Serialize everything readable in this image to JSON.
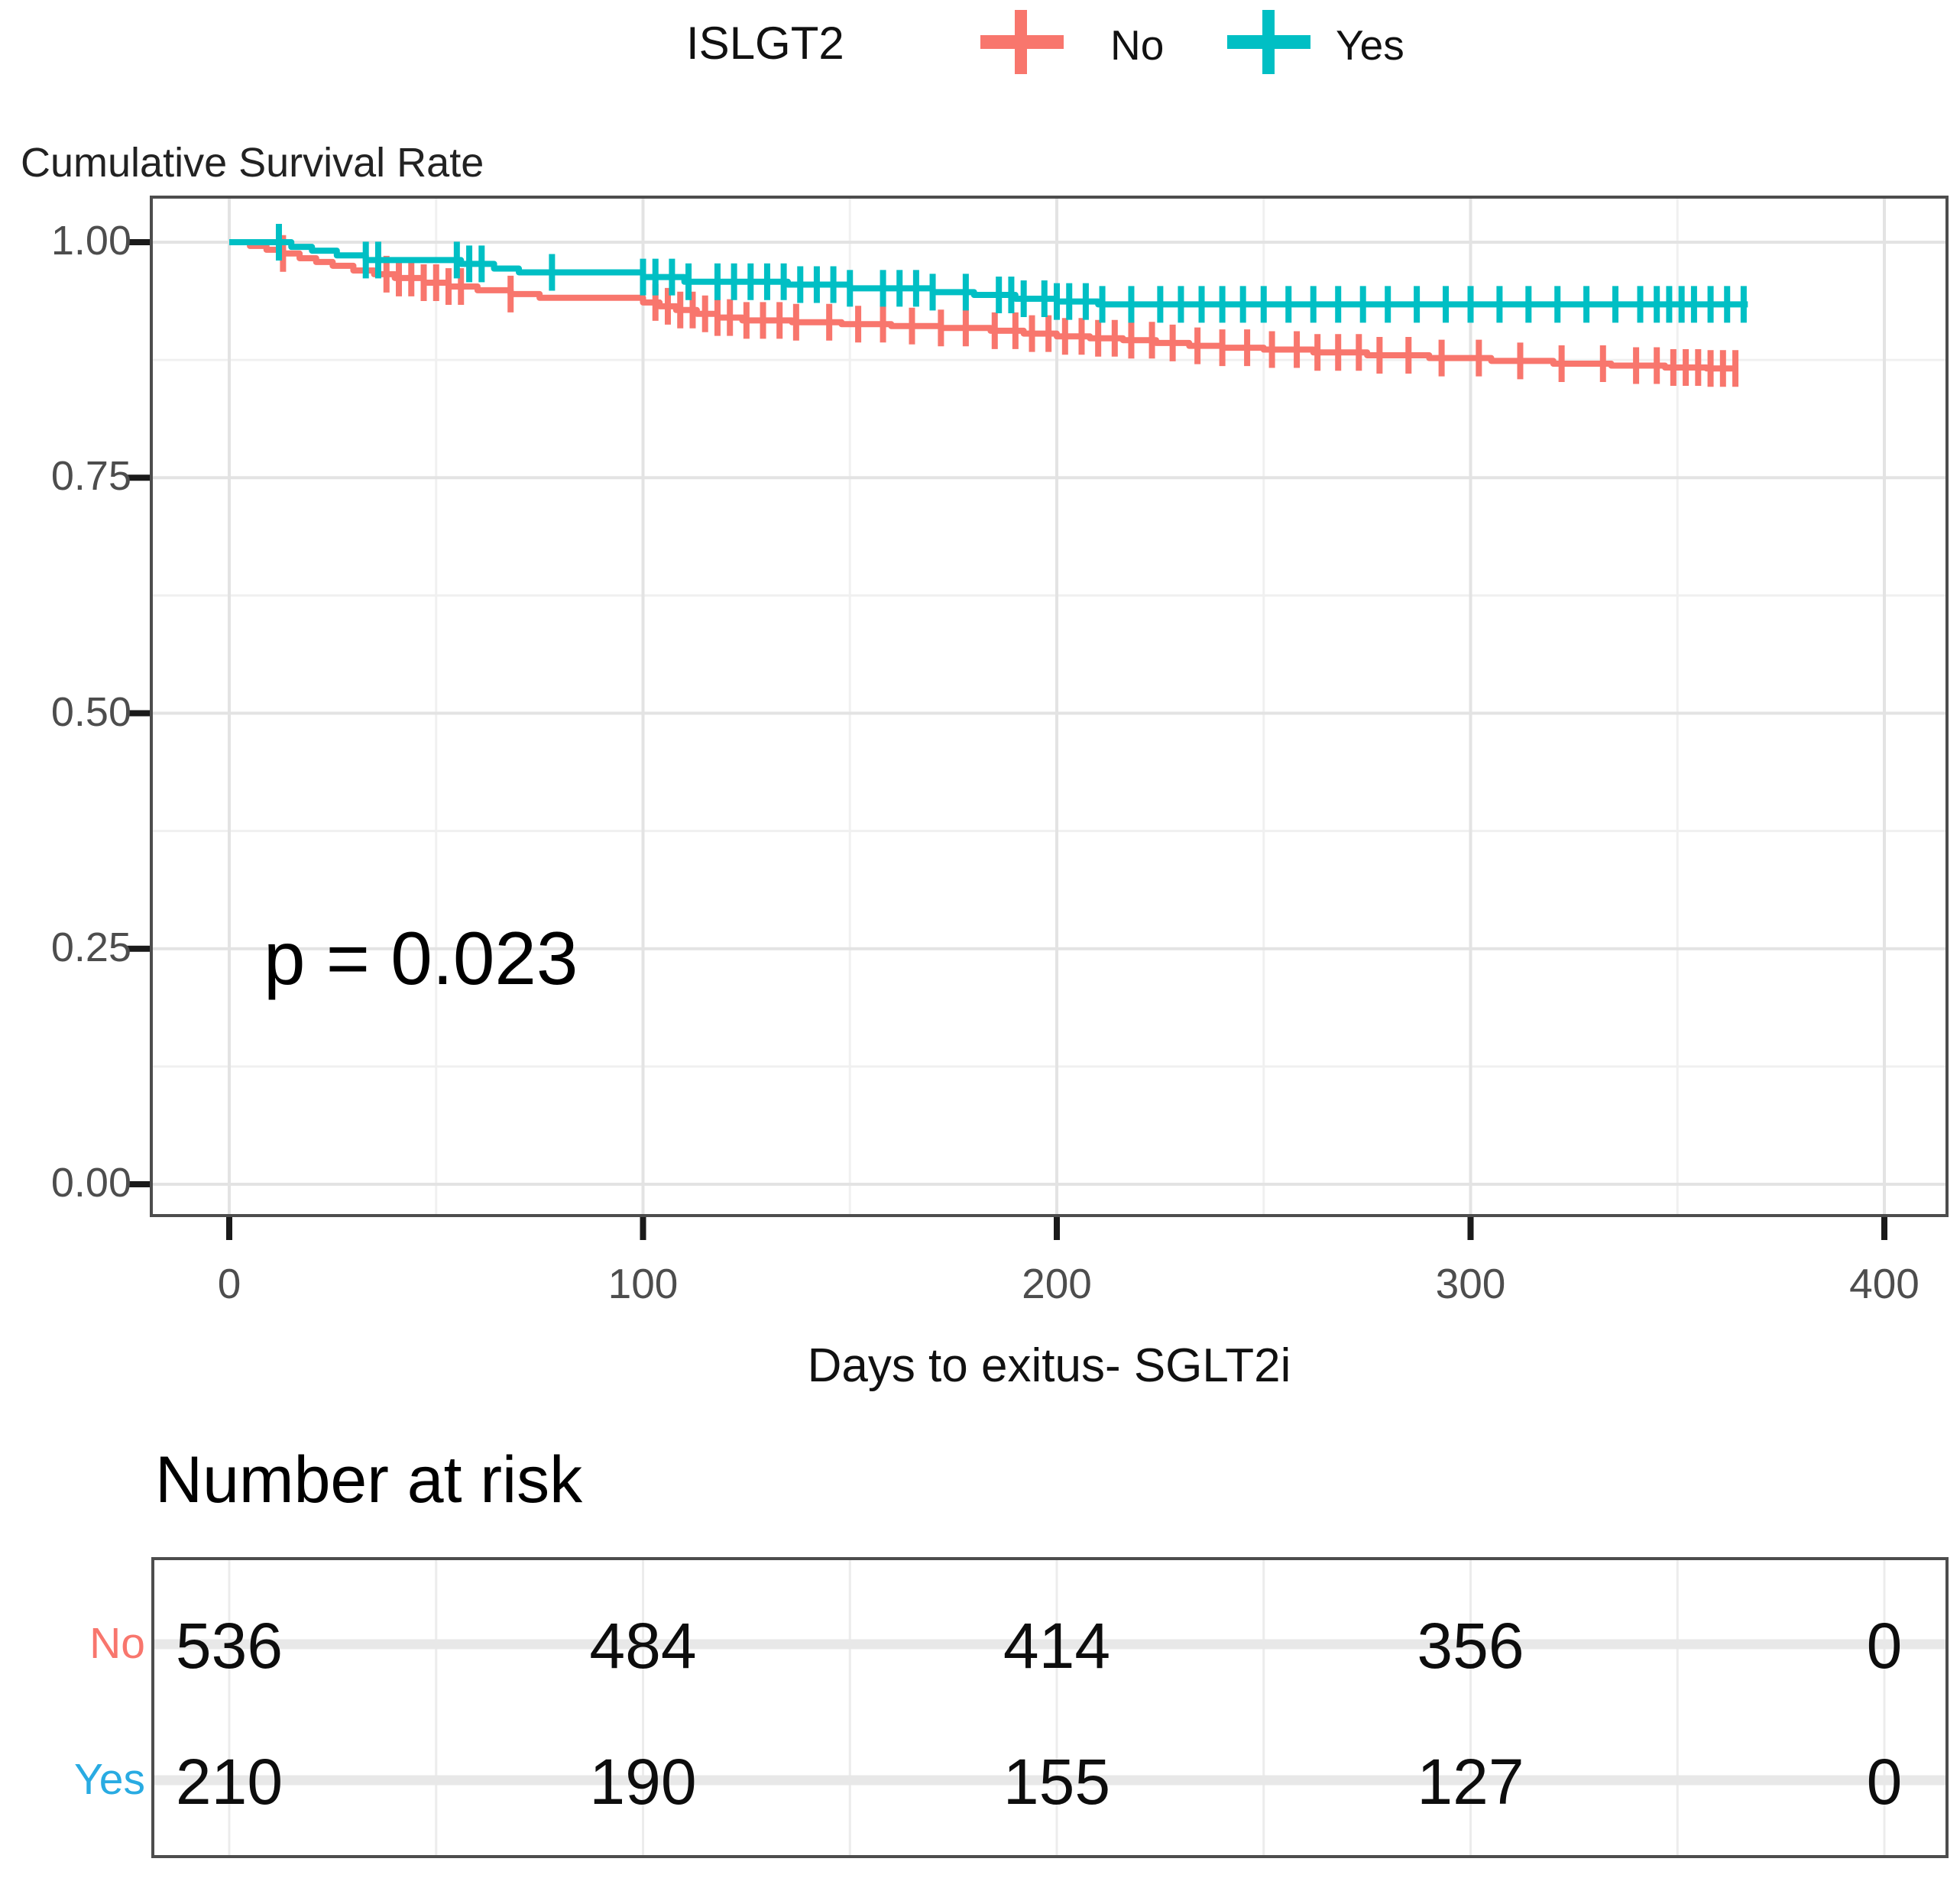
{
  "legend": {
    "title": "ISLGT2",
    "items": [
      {
        "label": "No",
        "color": "#F8766D"
      },
      {
        "label": "Yes",
        "color": "#00BFC4"
      }
    ]
  },
  "chart_data": {
    "type": "line",
    "variant": "kaplan-meier-step",
    "title": "Cumulative Survival Rate",
    "xlabel": "Days to exitus- SGLT2i",
    "ylabel": "Cumulative Survival Rate",
    "annotation": "p = 0.023",
    "x_ticks": [
      "0",
      "100",
      "200",
      "300",
      "400"
    ],
    "x_tick_values": [
      0,
      100,
      200,
      300,
      400
    ],
    "y_ticks": [
      "1.00",
      "0.75",
      "0.50",
      "0.25",
      "0.00"
    ],
    "y_tick_values": [
      1.0,
      0.75,
      0.5,
      0.25,
      0.0
    ],
    "xlim": [
      0,
      415
    ],
    "ylim": [
      0,
      1
    ],
    "grid": "major-and-minor",
    "legend_position": "top",
    "series": [
      {
        "name": "No",
        "color": "#F8766D",
        "steps": [
          [
            0,
            1.0
          ],
          [
            5,
            0.996
          ],
          [
            9,
            0.992
          ],
          [
            13,
            0.988
          ],
          [
            17,
            0.983
          ],
          [
            21,
            0.979
          ],
          [
            25,
            0.975
          ],
          [
            30,
            0.97
          ],
          [
            35,
            0.966
          ],
          [
            40,
            0.962
          ],
          [
            47,
            0.957
          ],
          [
            53,
            0.953
          ],
          [
            60,
            0.949
          ],
          [
            68,
            0.945
          ],
          [
            75,
            0.941
          ],
          [
            100,
            0.936
          ],
          [
            104,
            0.932
          ],
          [
            108,
            0.928
          ],
          [
            113,
            0.924
          ],
          [
            118,
            0.92
          ],
          [
            124,
            0.917
          ],
          [
            136,
            0.915
          ],
          [
            148,
            0.913
          ],
          [
            160,
            0.911
          ],
          [
            172,
            0.909
          ],
          [
            184,
            0.906
          ],
          [
            192,
            0.903
          ],
          [
            200,
            0.9
          ],
          [
            208,
            0.898
          ],
          [
            216,
            0.896
          ],
          [
            224,
            0.893
          ],
          [
            232,
            0.89
          ],
          [
            240,
            0.888
          ],
          [
            250,
            0.886
          ],
          [
            262,
            0.883
          ],
          [
            275,
            0.88
          ],
          [
            290,
            0.877
          ],
          [
            305,
            0.874
          ],
          [
            320,
            0.871
          ],
          [
            334,
            0.869
          ],
          [
            347,
            0.867
          ],
          [
            357,
            0.866
          ],
          [
            364,
            0.866
          ]
        ],
        "censor_days": [
          13,
          38,
          41,
          44,
          47,
          50,
          53,
          56,
          68,
          103,
          106,
          109,
          112,
          115,
          118,
          121,
          125,
          129,
          133,
          137,
          145,
          152,
          158,
          165,
          172,
          178,
          185,
          190,
          194,
          198,
          202,
          206,
          210,
          214,
          218,
          223,
          228,
          234,
          240,
          246,
          252,
          258,
          263,
          268,
          273,
          278,
          285,
          293,
          302,
          312,
          322,
          332,
          340,
          345,
          349,
          352,
          355,
          358,
          361,
          364
        ]
      },
      {
        "name": "Yes",
        "color": "#00BFC4",
        "steps": [
          [
            0,
            1.0
          ],
          [
            15,
            0.995
          ],
          [
            20,
            0.991
          ],
          [
            26,
            0.986
          ],
          [
            33,
            0.981
          ],
          [
            56,
            0.977
          ],
          [
            64,
            0.972
          ],
          [
            70,
            0.968
          ],
          [
            100,
            0.963
          ],
          [
            110,
            0.958
          ],
          [
            135,
            0.955
          ],
          [
            150,
            0.951
          ],
          [
            170,
            0.947
          ],
          [
            180,
            0.944
          ],
          [
            190,
            0.94
          ],
          [
            200,
            0.937
          ],
          [
            210,
            0.934
          ],
          [
            367,
            0.934
          ]
        ],
        "censor_days": [
          12,
          33,
          36,
          55,
          58,
          61,
          78,
          100,
          103,
          107,
          111,
          118,
          122,
          126,
          130,
          134,
          138,
          142,
          146,
          150,
          158,
          162,
          166,
          170,
          178,
          186,
          189,
          192,
          197,
          200,
          203,
          207,
          211,
          218,
          225,
          230,
          235,
          240,
          245,
          250,
          256,
          262,
          268,
          274,
          280,
          287,
          294,
          300,
          307,
          314,
          321,
          328,
          335,
          341,
          345,
          348,
          351,
          354,
          358,
          362,
          366
        ]
      }
    ]
  },
  "risk_table": {
    "title": "Number at risk",
    "rows": [
      {
        "label": "No",
        "label_color": "#F8766D",
        "values": [
          "536",
          "484",
          "414",
          "356",
          "0"
        ]
      },
      {
        "label": "Yes",
        "label_color": "#29ABE2",
        "values": [
          "210",
          "190",
          "155",
          "127",
          "0"
        ]
      }
    ]
  }
}
